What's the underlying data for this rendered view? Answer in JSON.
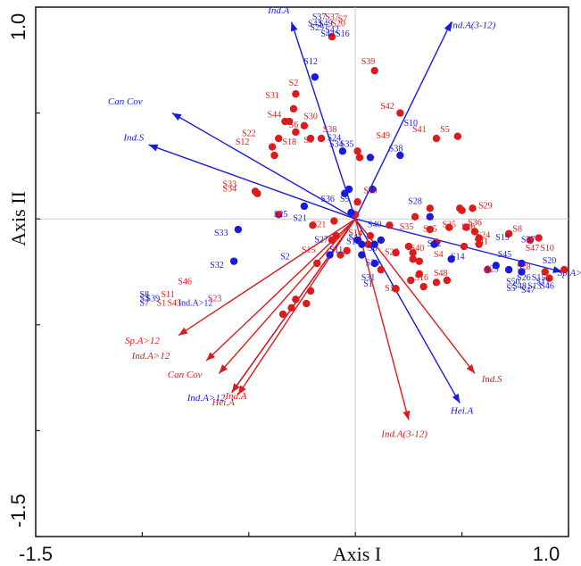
{
  "chart_data": {
    "type": "scatter",
    "subtype": "biplot",
    "xlabel": "Axis I",
    "ylabel": "Axis II",
    "xlim": [
      -1.5,
      1.0
    ],
    "ylim": [
      -1.5,
      1.0
    ],
    "x_tick_labels": [
      "-1.5",
      "1.0"
    ],
    "y_tick_labels": [
      "1.0",
      "-1.5"
    ],
    "x_ticks": [
      -1.5,
      -1.0,
      -0.5,
      0,
      0.5,
      1.0
    ],
    "y_ticks": [
      -1.5,
      -1.0,
      -0.5,
      0,
      0.5,
      1.0
    ],
    "colors": {
      "blue": "#1a1adb",
      "red": "#dc1c1c"
    },
    "blue_points": [
      [
        -0.19,
        0.67
      ],
      [
        -0.06,
        0.32
      ],
      [
        -0.24,
        0.06
      ],
      [
        0.07,
        0.29
      ],
      [
        0.35,
        0.01
      ],
      [
        -0.55,
        -0.05
      ],
      [
        -0.02,
        0.03
      ],
      [
        0.08,
        0.14
      ],
      [
        -0.05,
        0.12
      ],
      [
        -0.03,
        0.14
      ],
      [
        0.01,
        -0.1
      ],
      [
        0.03,
        -0.12
      ],
      [
        0.12,
        -0.1
      ],
      [
        0.03,
        -0.17
      ],
      [
        0.09,
        -0.12
      ],
      [
        0.37,
        -0.12
      ],
      [
        0.45,
        -0.19
      ],
      [
        -0.12,
        -0.17
      ],
      [
        -0.57,
        -0.2
      ],
      [
        0.09,
        -0.21
      ],
      [
        0.66,
        -0.22
      ],
      [
        0.78,
        -0.21
      ],
      [
        0.72,
        -0.24
      ],
      [
        0.78,
        -0.25
      ],
      [
        0.21,
        0.3
      ]
    ],
    "red_points": [
      [
        -0.11,
        0.86
      ],
      [
        -0.28,
        0.59
      ],
      [
        -0.29,
        0.52
      ],
      [
        0.09,
        0.7
      ],
      [
        0.21,
        0.5
      ],
      [
        0.48,
        0.39
      ],
      [
        0.38,
        0.38
      ],
      [
        0.01,
        0.32
      ],
      [
        -0.36,
        0.38
      ],
      [
        -0.16,
        0.38
      ],
      [
        -0.21,
        0.38
      ],
      [
        -0.39,
        0.34
      ],
      [
        -0.28,
        0.41
      ],
      [
        -0.24,
        0.44
      ],
      [
        -0.31,
        0.46
      ],
      [
        -0.33,
        0.46
      ],
      [
        -0.38,
        0.3
      ],
      [
        -0.47,
        0.13
      ],
      [
        -0.46,
        0.12
      ],
      [
        0.02,
        0.29
      ],
      [
        -0.36,
        0.02
      ],
      [
        -0.2,
        -0.03
      ],
      [
        -0.1,
        -0.01
      ],
      [
        0.16,
        -0.03
      ],
      [
        0.28,
        0.01
      ],
      [
        0.35,
        0.05
      ],
      [
        0.49,
        0.05
      ],
      [
        0.5,
        0.04
      ],
      [
        0.55,
        0.05
      ],
      [
        0.44,
        -0.04
      ],
      [
        0.52,
        -0.04
      ],
      [
        0.56,
        -0.06
      ],
      [
        0.58,
        -0.09
      ],
      [
        0.58,
        -0.12
      ],
      [
        0.72,
        -0.07
      ],
      [
        0.82,
        -0.1
      ],
      [
        0.86,
        -0.09
      ],
      [
        0.91,
        -0.28
      ],
      [
        0.98,
        -0.24
      ],
      [
        0.89,
        -0.25
      ],
      [
        0.51,
        -0.13
      ],
      [
        0.35,
        -0.05
      ],
      [
        0.38,
        -0.11
      ],
      [
        0.3,
        -0.2
      ],
      [
        0.19,
        -0.16
      ],
      [
        0.25,
        -0.13
      ],
      [
        0.27,
        -0.19
      ],
      [
        0.3,
        -0.26
      ],
      [
        0.26,
        -0.29
      ],
      [
        0.19,
        -0.33
      ],
      [
        -0.21,
        -0.34
      ],
      [
        -0.28,
        -0.38
      ],
      [
        -0.3,
        -0.42
      ],
      [
        -0.34,
        -0.45
      ],
      [
        -0.23,
        -0.4
      ],
      [
        0.32,
        -0.32
      ],
      [
        0.43,
        -0.29
      ],
      [
        0.27,
        -0.16
      ],
      [
        -0.18,
        -0.21
      ],
      [
        -0.04,
        -0.15
      ],
      [
        -0.09,
        -0.08
      ],
      [
        0.07,
        -0.08
      ],
      [
        0.12,
        -0.24
      ],
      [
        -0.11,
        -0.1
      ],
      [
        0.38,
        -0.3
      ],
      [
        -0.07,
        -0.17
      ],
      [
        0.01,
        0.08
      ],
      [
        0.06,
        -0.12
      ],
      [
        0.0,
        0.02
      ],
      [
        0.62,
        -0.24
      ]
    ],
    "site_labels_blue": [
      {
        "text": "S37",
        "x": -0.17,
        "y": 0.94
      },
      {
        "text": "S43",
        "x": -0.19,
        "y": 0.91
      },
      {
        "text": "S49",
        "x": -0.14,
        "y": 0.91
      },
      {
        "text": "S29",
        "x": -0.18,
        "y": 0.89
      },
      {
        "text": "S42",
        "x": -0.11,
        "y": 0.88
      },
      {
        "text": "S44",
        "x": -0.13,
        "y": 0.86
      },
      {
        "text": "S16",
        "x": -0.06,
        "y": 0.86
      },
      {
        "text": "S12",
        "x": -0.21,
        "y": 0.73
      },
      {
        "text": "S10",
        "x": 0.26,
        "y": 0.44
      },
      {
        "text": "S24",
        "x": -0.1,
        "y": 0.37
      },
      {
        "text": "S34",
        "x": -0.09,
        "y": 0.34
      },
      {
        "text": "S35",
        "x": -0.04,
        "y": 0.34
      },
      {
        "text": "S38",
        "x": 0.19,
        "y": 0.32
      },
      {
        "text": "S36",
        "x": -0.13,
        "y": 0.08
      },
      {
        "text": "S9",
        "x": -0.05,
        "y": 0.08
      },
      {
        "text": "S28",
        "x": 0.28,
        "y": 0.07
      },
      {
        "text": "S25",
        "x": -0.35,
        "y": 0.01
      },
      {
        "text": "S21",
        "x": -0.26,
        "y": -0.01
      },
      {
        "text": "S33",
        "x": -0.63,
        "y": -0.08
      },
      {
        "text": "S40",
        "x": 0.09,
        "y": -0.04
      },
      {
        "text": "S4",
        "x": -0.01,
        "y": -0.1
      },
      {
        "text": "S18",
        "x": -0.01,
        "y": -0.12
      },
      {
        "text": "S27",
        "x": -0.16,
        "y": -0.11
      },
      {
        "text": "S22",
        "x": 0.37,
        "y": -0.13
      },
      {
        "text": "S6",
        "x": 0.08,
        "y": -0.15
      },
      {
        "text": "S11",
        "x": -0.09,
        "y": -0.16
      },
      {
        "text": "S14",
        "x": 0.48,
        "y": -0.19
      },
      {
        "text": "S19",
        "x": 0.69,
        "y": -0.1
      },
      {
        "text": "S37",
        "x": 0.81,
        "y": -0.11
      },
      {
        "text": "S45",
        "x": 0.7,
        "y": -0.18
      },
      {
        "text": "S20",
        "x": 0.91,
        "y": -0.21
      },
      {
        "text": "S23",
        "x": 0.64,
        "y": -0.25
      },
      {
        "text": "S32",
        "x": -0.65,
        "y": -0.23
      },
      {
        "text": "S2",
        "x": -0.33,
        "y": -0.19
      },
      {
        "text": "S30",
        "x": 0.08,
        "y": -0.22
      },
      {
        "text": "S31",
        "x": 0.06,
        "y": -0.29
      },
      {
        "text": "S1",
        "x": 0.06,
        "y": -0.32
      },
      {
        "text": "S26",
        "x": 0.79,
        "y": -0.29
      },
      {
        "text": "S15",
        "x": 0.86,
        "y": -0.29
      },
      {
        "text": "S50",
        "x": 0.74,
        "y": -0.31
      },
      {
        "text": "S17",
        "x": 0.88,
        "y": -0.31
      },
      {
        "text": "S48",
        "x": 0.77,
        "y": -0.33
      },
      {
        "text": "S13",
        "x": 0.84,
        "y": -0.33
      },
      {
        "text": "S46",
        "x": 0.9,
        "y": -0.33
      },
      {
        "text": "S5",
        "x": 0.73,
        "y": -0.34
      },
      {
        "text": "S47",
        "x": 0.81,
        "y": -0.35
      },
      {
        "text": "S8",
        "x": -0.99,
        "y": -0.37
      },
      {
        "text": "S3",
        "x": -0.99,
        "y": -0.39
      },
      {
        "text": "S39",
        "x": -0.95,
        "y": -0.39
      },
      {
        "text": "S7",
        "x": -0.99,
        "y": -0.41
      },
      {
        "text": "Ind.A>12",
        "x": -0.75,
        "y": -0.41
      }
    ],
    "site_labels_red": [
      {
        "text": "S37",
        "x": -0.11,
        "y": 0.94
      },
      {
        "text": "S7",
        "x": -0.06,
        "y": 0.93
      },
      {
        "text": "S20",
        "x": -0.08,
        "y": 0.91
      },
      {
        "text": "S2",
        "x": -0.29,
        "y": 0.63
      },
      {
        "text": "S31",
        "x": -0.39,
        "y": 0.57
      },
      {
        "text": "S39",
        "x": 0.06,
        "y": 0.73
      },
      {
        "text": "S42",
        "x": 0.15,
        "y": 0.52
      },
      {
        "text": "S44",
        "x": -0.38,
        "y": 0.48
      },
      {
        "text": "S30",
        "x": -0.21,
        "y": 0.47
      },
      {
        "text": "S6",
        "x": -0.29,
        "y": 0.43
      },
      {
        "text": "S38",
        "x": -0.12,
        "y": 0.41
      },
      {
        "text": "S22",
        "x": -0.5,
        "y": 0.39
      },
      {
        "text": "S12",
        "x": -0.53,
        "y": 0.35
      },
      {
        "text": "S18",
        "x": -0.31,
        "y": 0.35
      },
      {
        "text": "S3",
        "x": -0.22,
        "y": 0.36
      },
      {
        "text": "S5",
        "x": 0.42,
        "y": 0.41
      },
      {
        "text": "S41",
        "x": 0.3,
        "y": 0.41
      },
      {
        "text": "S49",
        "x": 0.13,
        "y": 0.38
      },
      {
        "text": "S19",
        "x": 0.07,
        "y": 0.12
      },
      {
        "text": "S33",
        "x": -0.59,
        "y": 0.15
      },
      {
        "text": "S34",
        "x": -0.59,
        "y": 0.13
      },
      {
        "text": "S29",
        "x": 0.61,
        "y": 0.05
      },
      {
        "text": "S36",
        "x": 0.56,
        "y": -0.03
      },
      {
        "text": "S26",
        "x": 0.53,
        "y": -0.05
      },
      {
        "text": "S25",
        "x": 0.44,
        "y": -0.04
      },
      {
        "text": "S35",
        "x": 0.24,
        "y": -0.05
      },
      {
        "text": "S45",
        "x": 0.35,
        "y": -0.06
      },
      {
        "text": "S24",
        "x": 0.6,
        "y": -0.09
      },
      {
        "text": "S41",
        "x": 0.59,
        "y": -0.12
      },
      {
        "text": "S8",
        "x": 0.76,
        "y": -0.06
      },
      {
        "text": "S47",
        "x": 0.83,
        "y": -0.15
      },
      {
        "text": "S10",
        "x": 0.9,
        "y": -0.15
      },
      {
        "text": "S4",
        "x": 0.39,
        "y": -0.18
      },
      {
        "text": "S40",
        "x": 0.29,
        "y": -0.15
      },
      {
        "text": "S27",
        "x": 0.17,
        "y": -0.17
      },
      {
        "text": "S28",
        "x": 0.79,
        "y": -0.24
      },
      {
        "text": "S16",
        "x": 0.31,
        "y": -0.29
      },
      {
        "text": "S48",
        "x": 0.4,
        "y": -0.27
      },
      {
        "text": "S13",
        "x": 0.17,
        "y": -0.34
      },
      {
        "text": "S15",
        "x": -0.22,
        "y": -0.16
      },
      {
        "text": "S21",
        "x": -0.17,
        "y": -0.04
      },
      {
        "text": "S14",
        "x": 0.0,
        "y": -0.08
      },
      {
        "text": "S46",
        "x": -0.8,
        "y": -0.31
      },
      {
        "text": "S23",
        "x": -0.66,
        "y": -0.39
      },
      {
        "text": "S11",
        "x": -0.88,
        "y": -0.37
      },
      {
        "text": "S1",
        "x": -0.91,
        "y": -0.41
      },
      {
        "text": "S43",
        "x": -0.85,
        "y": -0.41
      }
    ],
    "vectors": [
      {
        "label": "Ind.A",
        "color": "blue",
        "x": -0.3,
        "y": 0.93,
        "lx": -0.36,
        "ly": 0.97
      },
      {
        "label": "Ind.A(3-12)",
        "color": "blue",
        "x": 0.45,
        "y": 0.93,
        "lx": 0.55,
        "ly": 0.9
      },
      {
        "label": "Can Cov",
        "color": "blue",
        "x": -0.86,
        "y": 0.5,
        "lx": -1.08,
        "ly": 0.54
      },
      {
        "label": "Ind.S",
        "color": "blue",
        "x": -0.97,
        "y": 0.35,
        "lx": -1.04,
        "ly": 0.37
      },
      {
        "label": "Sp.A>12",
        "color": "blue",
        "x": 0.97,
        "y": -0.25,
        "lx": 1.03,
        "ly": -0.27
      },
      {
        "label": "Hei.A",
        "color": "blue",
        "x": 0.49,
        "y": -0.87,
        "lx": 0.5,
        "ly": -0.92
      },
      {
        "label": "Ind.A>12",
        "color": "blue",
        "x": -0.58,
        "y": -0.82,
        "lx": -0.7,
        "ly": -0.86
      },
      {
        "label": "Sp.A>12",
        "color": "red",
        "x": -0.83,
        "y": -0.55,
        "lx": -1.0,
        "ly": -0.59
      },
      {
        "label": "Ind.A>12",
        "color": "red",
        "x": -0.7,
        "y": -0.67,
        "lx": -0.96,
        "ly": -0.66
      },
      {
        "label": "Can Cov",
        "color": "red",
        "x": -0.64,
        "y": -0.73,
        "lx": -0.8,
        "ly": -0.75
      },
      {
        "label": "Ind.A",
        "color": "red",
        "x": -0.55,
        "y": -0.83,
        "lx": -0.56,
        "ly": -0.85
      },
      {
        "label": "Hei.A",
        "color": "red",
        "x": -0.58,
        "y": -0.82,
        "lx": -0.62,
        "ly": -0.88
      },
      {
        "label": "Ind.S",
        "color": "red",
        "x": 0.56,
        "y": -0.73,
        "lx": 0.64,
        "ly": -0.77
      },
      {
        "label": "Ind.A(3-12)",
        "color": "red",
        "x": 0.25,
        "y": -0.95,
        "lx": 0.23,
        "ly": -1.03
      }
    ]
  }
}
